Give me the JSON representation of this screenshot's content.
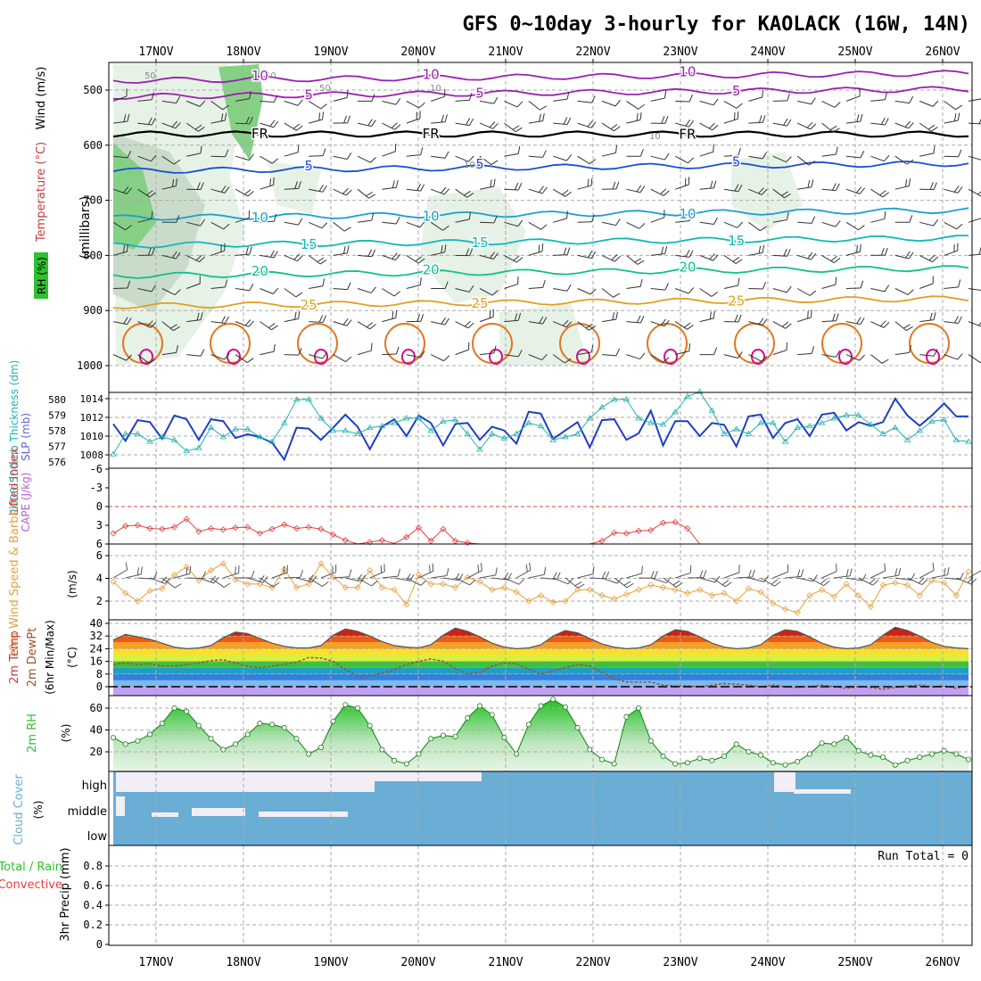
{
  "title": "GFS 0~10day 3-hourly for KAOLACK (16W, 14N)",
  "days": [
    "17NOV",
    "18NOV",
    "19NOV",
    "20NOV",
    "21NOV",
    "22NOV",
    "23NOV",
    "24NOV",
    "25NOV",
    "26NOV"
  ],
  "colors": {
    "frame": "#000000",
    "grid": "#aaaaaa",
    "slp": "#1f3fbf",
    "thickness": "#20b2b2",
    "lifted": "#e04040",
    "wind_speed": "#e8a040",
    "barb": "#555555",
    "rh": "#30c030",
    "cloud": "#6aaed6",
    "cloud_clear": "#f3eef5"
  },
  "chart_data": [
    {
      "type": "heatmap",
      "panel": "upper-air",
      "ylabel": "(millibars)",
      "axis_labels": [
        "RH (%)",
        "Temperature (°C)",
        "Wind (m/s)"
      ],
      "y_ticks": [
        500,
        600,
        700,
        800,
        900,
        1000
      ],
      "ylim": [
        1000,
        450
      ],
      "isotherms": [
        {
          "label": "10",
          "level_mb": 476,
          "color": "#9a20b0"
        },
        {
          "label": "5",
          "level_mb": 505,
          "color": "#9a20b0"
        },
        {
          "label": "FR",
          "level_mb": 580,
          "color": "#000000"
        },
        {
          "label": "5",
          "level_mb": 640,
          "color": "#1a50d0"
        },
        {
          "label": "10",
          "level_mb": 725,
          "color": "#1aa0d0"
        },
        {
          "label": "15",
          "level_mb": 775,
          "color": "#10b8b8"
        },
        {
          "label": "20",
          "level_mb": 830,
          "color": "#10c090"
        },
        {
          "label": "25",
          "level_mb": 885,
          "color": "#e0a020"
        }
      ],
      "rh_labels": [
        "50",
        "50",
        "50",
        "10",
        "10",
        "10"
      ]
    },
    {
      "type": "line",
      "panel": "slp-thickness",
      "ylabel_left": "1000-500mb Thickness (dm)",
      "ylabel_right": "SLP (mb)",
      "thickness_ticks": [
        576,
        577,
        578,
        579,
        580
      ],
      "slp_ticks": [
        1008,
        1010,
        1012,
        1014
      ],
      "series": [
        {
          "name": "SLP",
          "values": [
            1011.3,
            1009.5,
            1011.7,
            1011.5,
            1009.7,
            1012.2,
            1011.8,
            1009.6,
            1011.8,
            1011.6,
            1009.8,
            1010.2,
            1009.9,
            1009.3,
            1007.5,
            1010.9,
            1010.8,
            1009.6,
            1010.9,
            1012.3,
            1011.0,
            1008.6,
            1011.0,
            1011.8,
            1010.0,
            1012.2,
            1011.4,
            1009.0,
            1011.3,
            1011.4,
            1009.6,
            1011.0,
            1010.6,
            1009.2,
            1012.6,
            1012.4,
            1009.7,
            1010.6,
            1011.5,
            1008.8,
            1011.7,
            1011.8,
            1009.6,
            1010.3,
            1012.7,
            1009.0,
            1011.6,
            1011.6,
            1010.0,
            1011.4,
            1011.2,
            1008.9,
            1012.1,
            1012.3,
            1009.8,
            1011.4,
            1011.8,
            1010.0,
            1012.3,
            1012.5,
            1010.6,
            1011.5,
            1011.1,
            1011.5,
            1014.0,
            1012.2,
            1011.1,
            1012.2,
            1013.5,
            1012.1,
            1012.1
          ]
        },
        {
          "name": "Thickness",
          "values": [
            576.5,
            577.8,
            577.8,
            577.3,
            577.6,
            577.4,
            576.7,
            576.9,
            578.2,
            577.6,
            578.1,
            578.1,
            577.6,
            577.3,
            578.5,
            580.0,
            580.0,
            578.8,
            578.0,
            578.0,
            577.8,
            578.2,
            578.3,
            578.5,
            578.8,
            578.8,
            578.0,
            578.6,
            578.7,
            577.8,
            576.8,
            577.8,
            577.5,
            577.8,
            578.5,
            578.3,
            577.4,
            577.6,
            577.8,
            578.8,
            579.5,
            580.0,
            580.0,
            578.8,
            578.5,
            578.4,
            579.2,
            580.2,
            580.5,
            579.3,
            577.8,
            578.1,
            577.8,
            578.5,
            578.5,
            577.3,
            578.2,
            578.3,
            578.5,
            578.8,
            579.0,
            579.0,
            578.4,
            577.8,
            578.2,
            577.4,
            578.0,
            578.6,
            578.7,
            577.4,
            577.3
          ]
        }
      ]
    },
    {
      "type": "line",
      "panel": "lifted-index-cape",
      "ylabel": "Lifted Index",
      "ylabel2": "CAPE (J/kg)",
      "y_ticks": [
        -6,
        -3,
        0,
        3,
        6
      ],
      "ylim": [
        -6,
        6
      ],
      "series": [
        {
          "name": "Lifted Index",
          "values": [
            4.3,
            3.1,
            3.0,
            3.5,
            3.6,
            3.3,
            2.0,
            4.0,
            3.5,
            3.7,
            3.4,
            3.3,
            4.3,
            3.6,
            2.9,
            3.5,
            3.3,
            3.6,
            4.5,
            5.4,
            6.0,
            5.7,
            5.4,
            5.9,
            4.9,
            3.4,
            5.5,
            3.6,
            5.5,
            5.8,
            6.0,
            6.0,
            6.0,
            6.0,
            6.0,
            6.0,
            6.0,
            6.0,
            6.0,
            6.0,
            5.5,
            4.2,
            4.3,
            3.9,
            3.8,
            2.6,
            2.5,
            3.5,
            6.0,
            6.0,
            6.0,
            6.0,
            6.0,
            6.0,
            6.0,
            6.0,
            6.0,
            6.0,
            6.0,
            6.0,
            6.0,
            6.0,
            6.0,
            6.0,
            6.0,
            6.0,
            6.0,
            6.0,
            6.0,
            6.0,
            6.0
          ]
        }
      ]
    },
    {
      "type": "line",
      "panel": "10m-wind",
      "ylabel": "10m Wind Speed & Barbs",
      "unit": "(m/s)",
      "y_ticks": [
        2,
        4,
        6
      ],
      "ylim": [
        0.6,
        7.0
      ],
      "series": [
        {
          "name": "10m Wind Speed",
          "values": [
            3.7,
            2.7,
            2.0,
            2.9,
            3.1,
            4.3,
            5.0,
            3.8,
            4.7,
            5.3,
            3.9,
            3.5,
            3.5,
            3.2,
            4.8,
            3.2,
            3.5,
            5.3,
            4.1,
            3.2,
            3.2,
            4.7,
            3.2,
            3.0,
            1.7,
            4.3,
            3.5,
            3.5,
            3.2,
            4.1,
            3.7,
            3.0,
            3.2,
            2.8,
            2.0,
            2.5,
            1.9,
            2.0,
            3.0,
            3.0,
            2.5,
            2.2,
            2.6,
            3.0,
            3.4,
            3.2,
            3.0,
            2.7,
            3.0,
            2.5,
            2.7,
            2.0,
            3.1,
            2.8,
            1.8,
            1.3,
            1.0,
            2.5,
            3.0,
            2.4,
            3.5,
            2.5,
            1.5,
            3.4,
            3.6,
            3.4,
            2.5,
            3.8,
            3.6,
            2.5,
            4.6
          ]
        }
      ]
    },
    {
      "type": "area",
      "panel": "2m-temperature",
      "ylabel": "2m Temp 2m DewPt (6hr Min/Max)",
      "unit": "(°C)",
      "y_ticks": [
        0,
        8,
        16,
        24,
        32,
        40
      ],
      "ylim": [
        -6,
        40
      ],
      "series": [
        {
          "name": "2m Temp",
          "values": [
            29.5,
            33.0,
            31.5,
            30.0,
            27.5,
            25.0,
            24.0,
            24.5,
            26.0,
            31.0,
            34.5,
            33.5,
            30.5,
            27.5,
            25.5,
            24.5,
            24.5,
            26.0,
            32.5,
            36.5,
            35.0,
            32.0,
            28.5,
            26.0,
            25.0,
            24.5,
            26.5,
            32.5,
            37.0,
            35.0,
            31.5,
            27.5,
            25.0,
            24.0,
            24.5,
            26.5,
            32.0,
            35.5,
            34.0,
            30.5,
            27.0,
            25.0,
            24.0,
            24.5,
            26.5,
            32.0,
            36.0,
            35.0,
            31.5,
            27.5,
            25.0,
            24.0,
            24.5,
            26.5,
            32.5,
            36.0,
            35.0,
            31.5,
            27.5,
            25.0,
            24.0,
            24.5,
            26.5,
            32.5,
            37.5,
            35.5,
            32.0,
            28.0,
            25.5,
            24.5,
            24.0
          ]
        },
        {
          "name": "2m DewPt",
          "values": [
            14.0,
            15.0,
            14.0,
            14.5,
            13.0,
            13.0,
            14.0,
            15.0,
            16.5,
            17.0,
            15.0,
            13.0,
            12.0,
            13.0,
            14.0,
            15.5,
            18.5,
            18.0,
            16.0,
            11.0,
            6.5,
            7.0,
            8.5,
            11.0,
            14.0,
            16.0,
            17.5,
            16.0,
            11.5,
            8.0,
            9.0,
            13.0,
            15.0,
            14.5,
            11.0,
            8.0,
            10.0,
            12.0,
            14.0,
            13.0,
            9.0,
            5.0,
            3.0,
            3.0,
            3.0,
            1.0,
            0.5,
            0.5,
            0.0,
            1.0,
            2.0,
            1.5,
            1.0,
            0.0,
            1.0,
            0.0,
            -0.5,
            0.0,
            1.0,
            0.0,
            -1.0,
            0.0,
            -0.5,
            -1.5,
            -0.5,
            0.5,
            1.0,
            0.0,
            0.5,
            -1.0,
            0.5
          ]
        }
      ]
    },
    {
      "type": "area",
      "panel": "2m-rh",
      "ylabel": "2m RH",
      "unit": "(%)",
      "y_ticks": [
        20,
        40,
        60
      ],
      "ylim": [
        0,
        72
      ],
      "series": [
        {
          "name": "2m RH",
          "values": [
            33,
            27,
            30,
            36,
            46,
            60,
            57,
            44,
            32,
            22,
            27,
            36,
            46,
            45,
            42,
            32,
            18,
            24,
            48,
            63,
            60,
            44,
            22,
            12,
            9,
            18,
            32,
            35,
            34,
            51,
            62,
            54,
            33,
            18,
            45,
            62,
            68,
            61,
            42,
            22,
            13,
            9,
            52,
            60,
            30,
            16,
            9,
            10,
            14,
            12,
            16,
            27,
            20,
            17,
            10,
            8,
            11,
            18,
            28,
            27,
            33,
            21,
            17,
            15,
            8,
            12,
            15,
            18,
            21,
            18,
            13
          ]
        }
      ]
    },
    {
      "type": "heatmap",
      "panel": "cloud-cover",
      "ylabel": "Cloud Cover (%)",
      "levels": [
        "high",
        "middle",
        "low"
      ]
    },
    {
      "type": "bar",
      "panel": "precip",
      "ylabel": "3hr Precip (mm)",
      "axis_labels": [
        "Total / Rain",
        "Convective"
      ],
      "y_ticks": [
        "0",
        "0.2",
        "0.4",
        "0.6",
        "0.8"
      ],
      "ylim": [
        0,
        0.9
      ],
      "annotation": "Run Total = 0"
    }
  ]
}
